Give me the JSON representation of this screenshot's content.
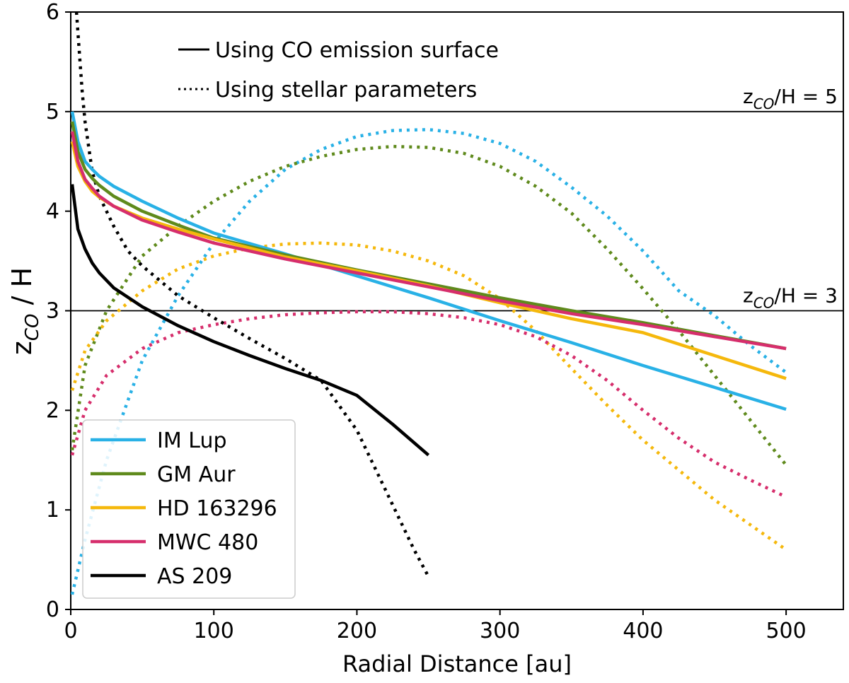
{
  "chart_data": {
    "type": "line",
    "xlabel": "Radial Distance [au]",
    "ylabel": "z_CO / H",
    "ylabel_parts": {
      "main": "z",
      "sub": "CO",
      "rest": " / H"
    },
    "xlim": [
      0,
      540
    ],
    "ylim": [
      0,
      6
    ],
    "xticks": [
      0,
      100,
      200,
      300,
      400,
      500
    ],
    "yticks": [
      0,
      1,
      2,
      3,
      4,
      5,
      6
    ],
    "grid": false,
    "reference_lines": [
      {
        "y": 5,
        "label_main": "z",
        "label_sub": "CO",
        "label_rest": "/H = 5"
      },
      {
        "y": 3,
        "label_main": "z",
        "label_sub": "CO",
        "label_rest": "/H = 3"
      }
    ],
    "style_legend": [
      {
        "style": "solid",
        "label": "Using CO emission surface"
      },
      {
        "style": "dotted",
        "label": "Using stellar parameters"
      }
    ],
    "series": [
      {
        "name": "IM Lup",
        "color": "#29b1e6",
        "solid": {
          "x": [
            1,
            5,
            10,
            15,
            20,
            30,
            50,
            75,
            100,
            150,
            200,
            250,
            300,
            350,
            400,
            450,
            500
          ],
          "y": [
            5.0,
            4.7,
            4.5,
            4.42,
            4.35,
            4.25,
            4.1,
            3.93,
            3.78,
            3.57,
            3.35,
            3.13,
            2.9,
            2.68,
            2.45,
            2.23,
            2.01
          ]
        },
        "dotted": {
          "x": [
            1,
            10,
            25,
            50,
            75,
            100,
            125,
            150,
            175,
            200,
            225,
            250,
            275,
            300,
            325,
            350,
            375,
            400,
            425,
            450,
            475,
            500
          ],
          "y": [
            0.15,
            0.7,
            1.5,
            2.5,
            3.15,
            3.68,
            4.1,
            4.42,
            4.62,
            4.75,
            4.81,
            4.82,
            4.78,
            4.68,
            4.5,
            4.24,
            3.95,
            3.6,
            3.2,
            2.95,
            2.65,
            2.38
          ]
        }
      },
      {
        "name": "GM Aur",
        "color": "#5f8a1c",
        "solid": {
          "x": [
            1,
            5,
            10,
            15,
            20,
            30,
            50,
            75,
            100,
            150,
            200,
            250,
            300,
            350,
            400,
            450,
            500
          ],
          "y": [
            4.9,
            4.6,
            4.42,
            4.33,
            4.26,
            4.15,
            4.0,
            3.86,
            3.73,
            3.56,
            3.41,
            3.27,
            3.13,
            3.0,
            2.88,
            2.75,
            2.62
          ]
        },
        "dotted": {
          "x": [
            1,
            10,
            25,
            50,
            75,
            100,
            125,
            150,
            175,
            200,
            225,
            250,
            275,
            300,
            325,
            350,
            375,
            400,
            425,
            450,
            475,
            500
          ],
          "y": [
            1.6,
            2.45,
            3.0,
            3.55,
            3.85,
            4.1,
            4.3,
            4.45,
            4.55,
            4.62,
            4.65,
            4.64,
            4.58,
            4.45,
            4.25,
            3.98,
            3.62,
            3.22,
            2.8,
            2.35,
            1.9,
            1.45
          ]
        }
      },
      {
        "name": "HD 163296",
        "color": "#f5b80c",
        "solid": {
          "x": [
            1,
            5,
            10,
            15,
            20,
            30,
            50,
            75,
            100,
            150,
            200,
            250,
            300,
            350,
            400,
            450,
            500
          ],
          "y": [
            4.7,
            4.45,
            4.3,
            4.2,
            4.14,
            4.05,
            3.93,
            3.82,
            3.72,
            3.54,
            3.4,
            3.25,
            3.08,
            2.92,
            2.78,
            2.55,
            2.32
          ]
        },
        "dotted": {
          "x": [
            1,
            10,
            25,
            50,
            75,
            100,
            125,
            150,
            175,
            200,
            225,
            250,
            275,
            300,
            325,
            350,
            375,
            400,
            425,
            450,
            475,
            500
          ],
          "y": [
            2.2,
            2.6,
            2.9,
            3.2,
            3.42,
            3.55,
            3.63,
            3.67,
            3.68,
            3.66,
            3.6,
            3.5,
            3.35,
            3.12,
            2.8,
            2.42,
            2.05,
            1.7,
            1.4,
            1.1,
            0.85,
            0.6
          ]
        }
      },
      {
        "name": "MWC 480",
        "color": "#d62e6c",
        "solid": {
          "x": [
            1,
            5,
            10,
            15,
            20,
            30,
            50,
            75,
            100,
            150,
            200,
            250,
            300,
            350,
            400,
            450,
            500
          ],
          "y": [
            4.8,
            4.5,
            4.32,
            4.23,
            4.15,
            4.05,
            3.91,
            3.79,
            3.68,
            3.52,
            3.38,
            3.24,
            3.1,
            2.97,
            2.86,
            2.74,
            2.62
          ]
        },
        "dotted": {
          "x": [
            1,
            10,
            25,
            50,
            75,
            100,
            125,
            150,
            175,
            200,
            225,
            250,
            275,
            300,
            325,
            350,
            375,
            400,
            425,
            450,
            475,
            500
          ],
          "y": [
            1.55,
            2.0,
            2.35,
            2.62,
            2.78,
            2.86,
            2.92,
            2.96,
            2.98,
            2.99,
            2.99,
            2.97,
            2.93,
            2.86,
            2.74,
            2.55,
            2.3,
            2.0,
            1.72,
            1.48,
            1.3,
            1.13
          ]
        }
      },
      {
        "name": "AS 209",
        "color": "#000000",
        "solid": {
          "x": [
            1,
            5,
            10,
            15,
            20,
            30,
            50,
            75,
            100,
            125,
            150,
            175,
            200,
            225,
            250
          ],
          "y": [
            4.27,
            3.82,
            3.62,
            3.48,
            3.38,
            3.23,
            3.04,
            2.85,
            2.69,
            2.55,
            2.42,
            2.3,
            2.15,
            1.86,
            1.55
          ]
        },
        "dotted": {
          "x": [
            4,
            6,
            8,
            10,
            15,
            20,
            30,
            40,
            50,
            75,
            100,
            125,
            150,
            175,
            190,
            200,
            210,
            225,
            240,
            250
          ],
          "y": [
            6.0,
            5.6,
            5.2,
            4.9,
            4.4,
            4.15,
            3.85,
            3.6,
            3.45,
            3.15,
            2.93,
            2.72,
            2.52,
            2.3,
            2.0,
            1.8,
            1.5,
            1.05,
            0.6,
            0.33
          ]
        }
      }
    ]
  }
}
